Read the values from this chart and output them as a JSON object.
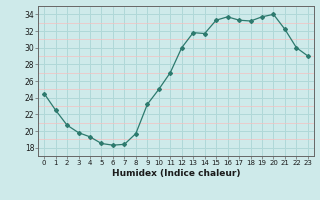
{
  "x": [
    0,
    1,
    2,
    3,
    4,
    5,
    6,
    7,
    8,
    9,
    10,
    11,
    12,
    13,
    14,
    15,
    16,
    17,
    18,
    19,
    20,
    21,
    22,
    23
  ],
  "y": [
    24.5,
    22.5,
    20.7,
    19.8,
    19.3,
    18.5,
    18.3,
    18.4,
    19.7,
    23.2,
    25.0,
    27.0,
    30.0,
    31.8,
    31.7,
    33.3,
    33.7,
    33.3,
    33.2,
    33.7,
    34.0,
    32.2,
    30.0,
    29.0
  ],
  "xlabel": "Humidex (Indice chaleur)",
  "ylim": [
    17,
    35
  ],
  "yticks": [
    18,
    20,
    22,
    24,
    26,
    28,
    30,
    32,
    34
  ],
  "xticks": [
    0,
    1,
    2,
    3,
    4,
    5,
    6,
    7,
    8,
    9,
    10,
    11,
    12,
    13,
    14,
    15,
    16,
    17,
    18,
    19,
    20,
    21,
    22,
    23
  ],
  "line_color": "#2d7a6e",
  "marker": "D",
  "marker_size": 2.0,
  "bg_color": "#ceeaea",
  "major_grid_color": "#b0d8d8",
  "minor_grid_color": "#f5c0c0",
  "spine_color": "#666666",
  "tick_color": "#444444",
  "label_color": "#1a1a1a"
}
